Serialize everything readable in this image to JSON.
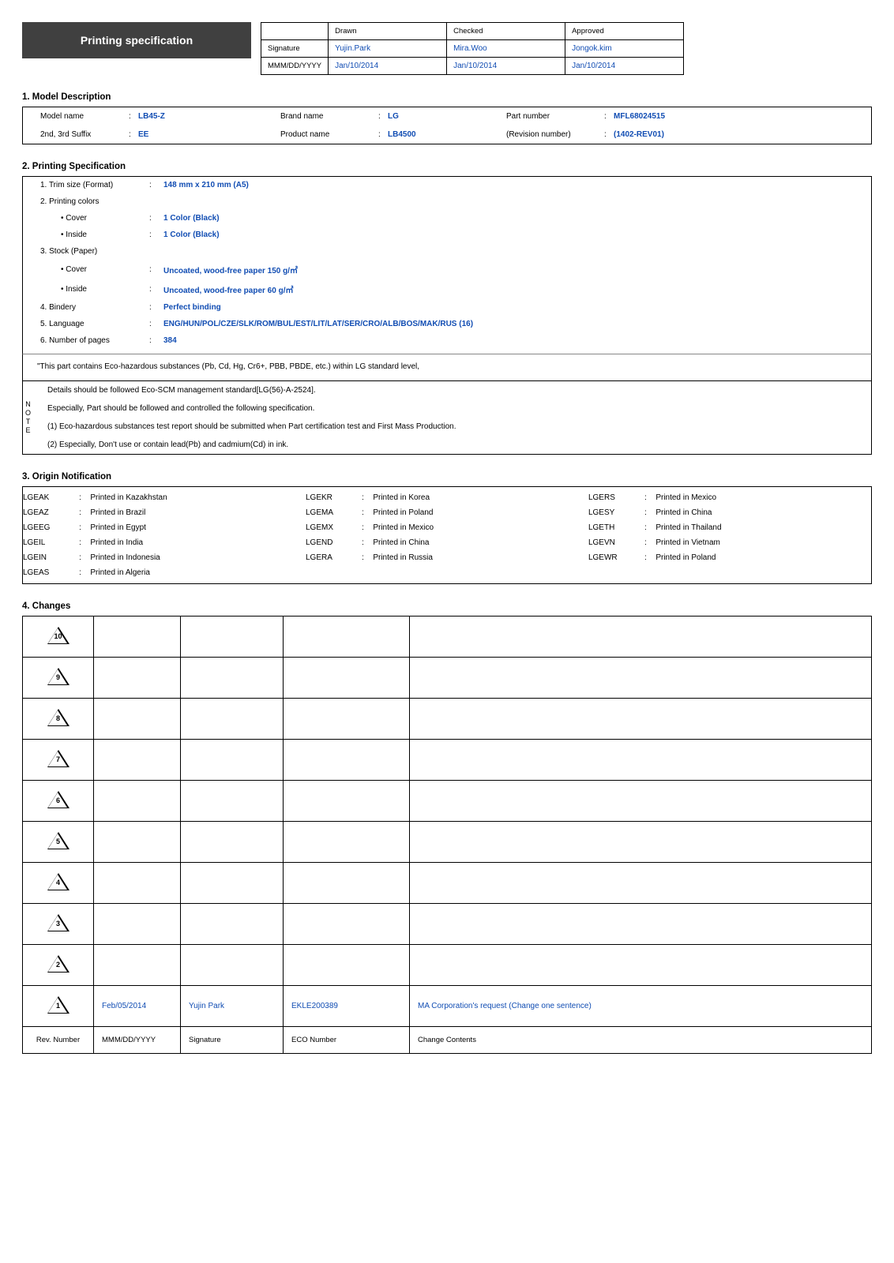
{
  "header": {
    "title": "Printing specification",
    "cols": {
      "drawn": "Drawn",
      "checked": "Checked",
      "approved": "Approved"
    },
    "rows": {
      "signature_label": "Signature",
      "date_label": "MMM/DD/YYYY",
      "signature": {
        "drawn": "Yujin.Park",
        "checked": "Mira.Woo",
        "approved": "Jongok.kim"
      },
      "date": {
        "drawn": "Jan/10/2014",
        "checked": "Jan/10/2014",
        "approved": "Jan/10/2014"
      }
    }
  },
  "section_titles": {
    "model": "1. Model Description",
    "spec": "2. Printing Specification",
    "origin": "3. Origin Notification",
    "changes": "4. Changes"
  },
  "model": {
    "labels": {
      "model_name": "Model name",
      "brand_name": "Brand name",
      "part_number": "Part number",
      "suffix": "2nd, 3rd Suffix",
      "product_name": "Product name",
      "revision": "(Revision number)"
    },
    "values": {
      "model_name": "LB45-Z",
      "brand_name": "LG",
      "part_number": "MFL68024515",
      "suffix": "EE",
      "product_name": "LB4500",
      "revision": "(1402-REV01)"
    }
  },
  "spec": {
    "rows": [
      {
        "label": "1. Trim size (Format)",
        "sub": false,
        "value": "148 mm x 210 mm (A5)"
      },
      {
        "label": "2. Printing colors",
        "sub": false,
        "value": ""
      },
      {
        "label": "• Cover",
        "sub": true,
        "value": "1 Color (Black)"
      },
      {
        "label": "• Inside",
        "sub": true,
        "value": "1 Color (Black)"
      },
      {
        "label": "3. Stock (Paper)",
        "sub": false,
        "value": ""
      },
      {
        "label": "• Cover",
        "sub": true,
        "value": "Uncoated, wood-free paper 150 g/㎡"
      },
      {
        "label": "• Inside",
        "sub": true,
        "value": "Uncoated, wood-free paper 60 g/㎡"
      },
      {
        "label": "4. Bindery",
        "sub": false,
        "value": "Perfect binding"
      },
      {
        "label": "5. Language",
        "sub": false,
        "value": "ENG/HUN/POL/CZE/SLK/ROM/BUL/EST/LIT/LAT/SER/CRO/ALB/BOS/MAK/RUS (16)"
      },
      {
        "label": "6. Number of pages",
        "sub": false,
        "value": "384"
      }
    ],
    "note_side": [
      "N",
      "O",
      "T",
      "E"
    ],
    "note_lines": [
      "\"This part contains Eco-hazardous substances (Pb, Cd, Hg, Cr6+, PBB, PBDE, etc.) within LG standard level,",
      "Details should be followed Eco-SCM management standard[LG(56)-A-2524].",
      "Especially, Part should be followed and controlled the following specification.",
      "(1) Eco-hazardous substances test report should be submitted when Part certification test and First Mass Production.",
      "(2) Especially, Don't use or contain lead(Pb) and cadmium(Cd) in ink."
    ]
  },
  "origin": [
    [
      "LGEAK",
      "Printed in Kazakhstan",
      "LGEKR",
      "Printed in Korea",
      "LGERS",
      "Printed in Mexico"
    ],
    [
      "LGEAZ",
      "Printed in Brazil",
      "LGEMA",
      "Printed in Poland",
      "LGESY",
      "Printed in China"
    ],
    [
      "LGEEG",
      "Printed in Egypt",
      "LGEMX",
      "Printed in Mexico",
      "LGETH",
      "Printed in Thailand"
    ],
    [
      "LGEIL",
      "Printed in India",
      "LGEND",
      "Printed in China",
      "LGEVN",
      "Printed in Vietnam"
    ],
    [
      "LGEIN",
      "Printed in Indonesia",
      "LGERA",
      "Printed in Russia",
      "LGEWR",
      "Printed in Poland"
    ],
    [
      "LGEAS",
      "Printed in Algeria",
      "",
      "",
      "",
      ""
    ]
  ],
  "changes": {
    "header": {
      "rev": "Rev. Number",
      "date": "MMM/DD/YYYY",
      "sig": "Signature",
      "eco": "ECO Number",
      "contents": "Change Contents"
    },
    "rows": [
      {
        "n": "10",
        "date": "",
        "sig": "",
        "eco": "",
        "contents": "",
        "blue": false
      },
      {
        "n": "9",
        "date": "",
        "sig": "",
        "eco": "",
        "contents": "",
        "blue": false
      },
      {
        "n": "8",
        "date": "",
        "sig": "",
        "eco": "",
        "contents": "",
        "blue": false
      },
      {
        "n": "7",
        "date": "",
        "sig": "",
        "eco": "",
        "contents": "",
        "blue": false
      },
      {
        "n": "6",
        "date": "",
        "sig": "",
        "eco": "",
        "contents": "",
        "blue": false
      },
      {
        "n": "5",
        "date": "",
        "sig": "",
        "eco": "",
        "contents": "",
        "blue": false
      },
      {
        "n": "4",
        "date": "",
        "sig": "",
        "eco": "",
        "contents": "",
        "blue": false
      },
      {
        "n": "3",
        "date": "",
        "sig": "",
        "eco": "",
        "contents": "",
        "blue": false
      },
      {
        "n": "2",
        "date": "",
        "sig": "",
        "eco": "",
        "contents": "",
        "blue": false
      },
      {
        "n": "1",
        "date": "Feb/05/2014",
        "sig": "Yujin Park",
        "eco": "EKLE200389",
        "contents": "MA Corporation's request (Change one sentence)",
        "blue": true
      }
    ]
  }
}
